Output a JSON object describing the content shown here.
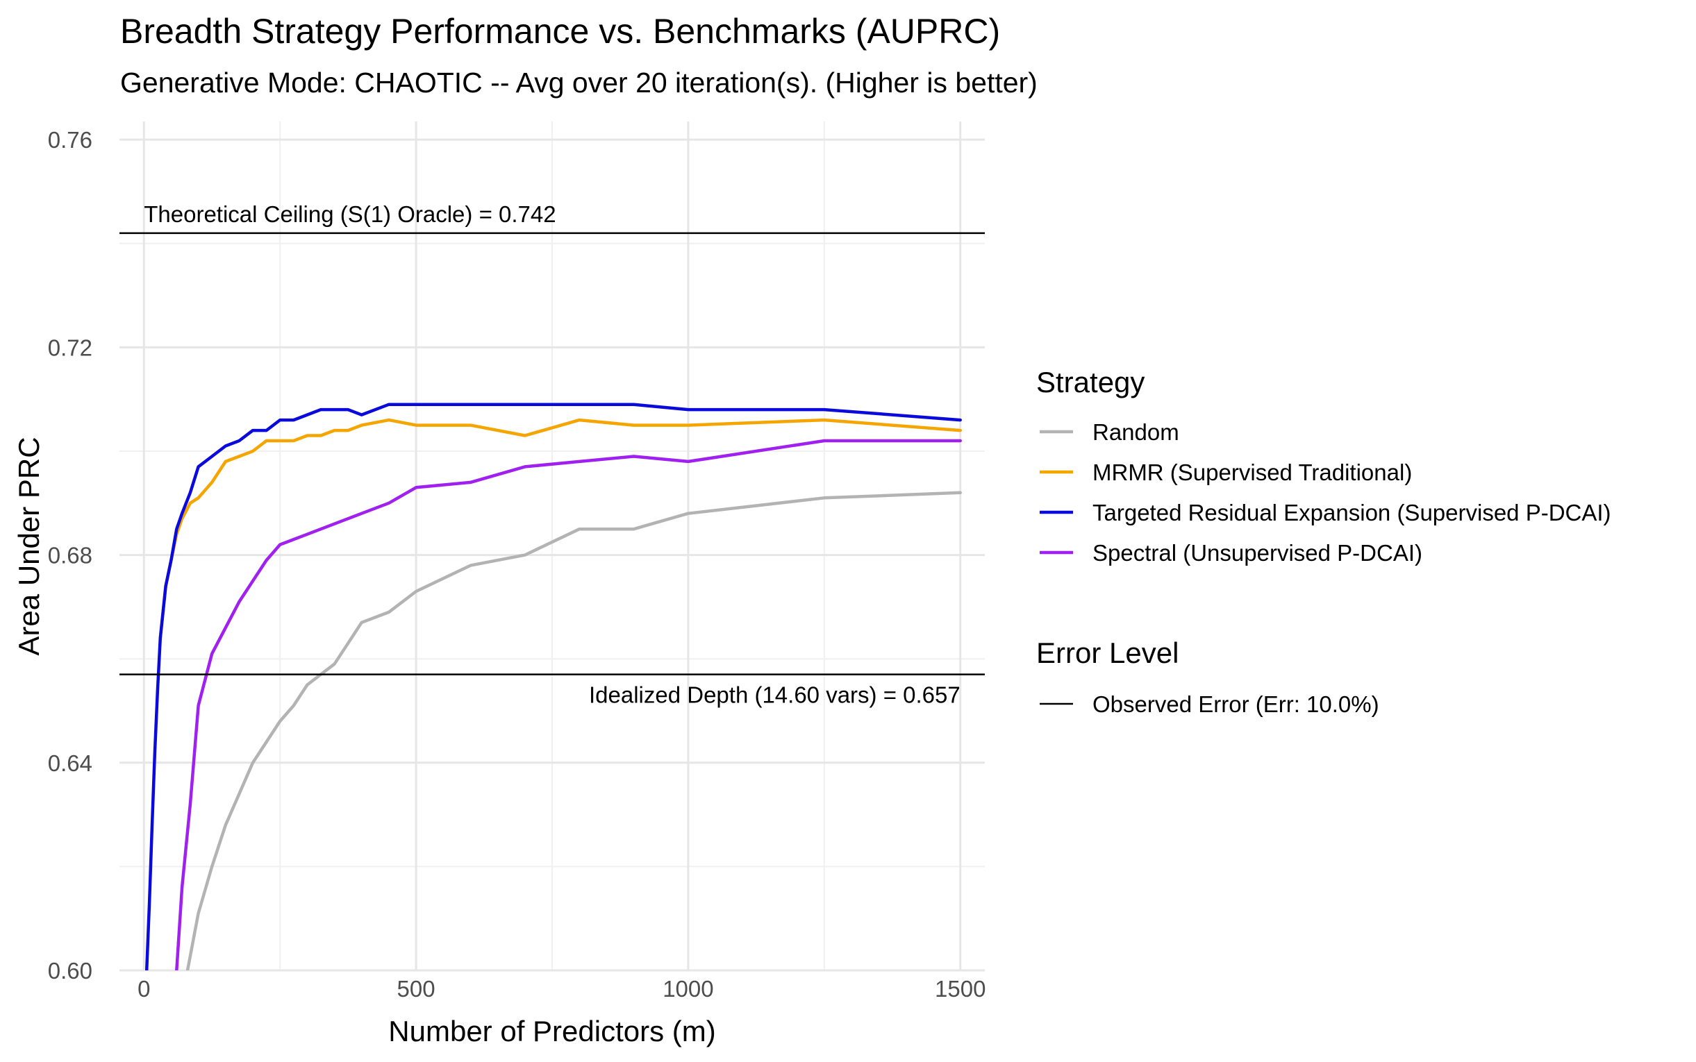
{
  "chart_data": {
    "type": "line",
    "title": "Breadth Strategy Performance vs. Benchmarks (AUPRC)",
    "subtitle": "Generative Mode: CHAOTIC -- Avg over 20 iteration(s). (Higher is better)",
    "xlabel": "Number of Predictors (m)",
    "ylabel": "Area Under PRC",
    "xlim": [
      -45,
      1545
    ],
    "ylim": [
      0.6,
      0.7635
    ],
    "x_ticks": [
      0,
      500,
      1000,
      1500
    ],
    "x_tick_labels": [
      "0",
      "500",
      "1000",
      "1500"
    ],
    "y_ticks": [
      0.6,
      0.64,
      0.68,
      0.72,
      0.76
    ],
    "y_tick_labels": [
      "0.60",
      "0.64",
      "0.68",
      "0.72",
      "0.76"
    ],
    "grid": true,
    "legend_position": "right",
    "series": [
      {
        "name": "Random",
        "color": "#b3b3b3",
        "x": [
          80,
          100,
          125,
          150,
          175,
          200,
          225,
          250,
          275,
          300,
          325,
          350,
          375,
          400,
          450,
          500,
          600,
          700,
          800,
          900,
          1000,
          1250,
          1500
        ],
        "y": [
          0.6,
          0.611,
          0.62,
          0.628,
          0.634,
          0.64,
          0.644,
          0.648,
          0.651,
          0.655,
          0.657,
          0.659,
          0.663,
          0.667,
          0.669,
          0.673,
          0.678,
          0.68,
          0.685,
          0.685,
          0.688,
          0.691,
          0.692
        ]
      },
      {
        "name": "MRMR (Supervised Traditional)",
        "color": "#f5a500",
        "x": [
          30,
          40,
          50,
          60,
          70,
          85,
          100,
          125,
          150,
          175,
          200,
          225,
          250,
          275,
          300,
          325,
          350,
          375,
          400,
          450,
          500,
          600,
          700,
          800,
          900,
          1000,
          1250,
          1500
        ],
        "y": [
          0.664,
          0.674,
          0.679,
          0.684,
          0.687,
          0.69,
          0.691,
          0.694,
          0.698,
          0.699,
          0.7,
          0.702,
          0.702,
          0.702,
          0.703,
          0.703,
          0.704,
          0.704,
          0.705,
          0.706,
          0.705,
          0.705,
          0.703,
          0.706,
          0.705,
          0.705,
          0.706,
          0.704
        ]
      },
      {
        "name": "Targeted Residual Expansion (Supervised P-DCAI)",
        "color": "#0a0adc",
        "x": [
          5,
          10,
          15,
          20,
          25,
          30,
          40,
          50,
          60,
          70,
          85,
          100,
          125,
          150,
          175,
          200,
          225,
          250,
          275,
          300,
          325,
          350,
          375,
          400,
          450,
          500,
          600,
          700,
          800,
          900,
          1000,
          1250,
          1500
        ],
        "y": [
          0.6,
          0.613,
          0.628,
          0.642,
          0.654,
          0.664,
          0.674,
          0.679,
          0.685,
          0.688,
          0.692,
          0.697,
          0.699,
          0.701,
          0.702,
          0.704,
          0.704,
          0.706,
          0.706,
          0.707,
          0.708,
          0.708,
          0.708,
          0.707,
          0.709,
          0.709,
          0.709,
          0.709,
          0.709,
          0.709,
          0.708,
          0.708,
          0.706
        ]
      },
      {
        "name": "Spectral (Unsupervised P-DCAI)",
        "color": "#a020f0",
        "x": [
          60,
          70,
          85,
          100,
          125,
          150,
          175,
          200,
          225,
          250,
          275,
          300,
          325,
          350,
          375,
          400,
          450,
          500,
          600,
          700,
          800,
          900,
          1000,
          1250,
          1500
        ],
        "y": [
          0.6,
          0.616,
          0.632,
          0.651,
          0.661,
          0.666,
          0.671,
          0.675,
          0.679,
          0.682,
          0.683,
          0.684,
          0.685,
          0.686,
          0.687,
          0.688,
          0.69,
          0.693,
          0.694,
          0.697,
          0.698,
          0.699,
          0.698,
          0.702,
          0.702
        ]
      }
    ],
    "reference_lines": [
      {
        "y": 0.742,
        "label": "Theoretical Ceiling (S(1) Oracle) = 0.742",
        "label_align": "left",
        "label_x": 0,
        "label_side": "above"
      },
      {
        "y": 0.657,
        "label": "Idealized Depth (14.60 vars) = 0.657",
        "label_align": "right",
        "label_x": 1500,
        "label_side": "below"
      }
    ],
    "legend": {
      "strategy_title": "Strategy",
      "strategy_items": [
        "Random",
        "MRMR (Supervised Traditional)",
        "Targeted Residual Expansion (Supervised P-DCAI)",
        "Spectral (Unsupervised P-DCAI)"
      ],
      "error_title": "Error Level",
      "error_items": [
        {
          "label": "Observed Error (Err: 10.0%)",
          "color": "#000000"
        }
      ]
    }
  }
}
